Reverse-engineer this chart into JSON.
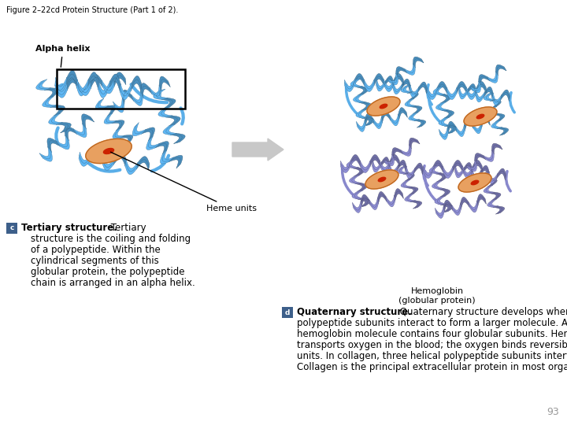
{
  "title": "Figure 2–22cd Protein Structure (Part 1 of 2).",
  "title_fontsize": 7,
  "title_color": "#000000",
  "background_color": "#ffffff",
  "page_number": "93",
  "alpha_helix_label": "Alpha helix",
  "heme_units_label": "Heme units",
  "hemoglobin_label": "Hemoglobin\n(globular protein)",
  "c_box_color": "#3d5f8a",
  "d_box_color": "#3d5f8a",
  "protein1_color": "#5aaee8",
  "protein2_color_blue": "#5aaee8",
  "protein2_color_purple": "#8888cc",
  "heme_outer_color": "#e8a060",
  "heme_inner_color": "#cc2200",
  "arrow_color": "#c8c8c8",
  "text_fontsize": 8.5,
  "label_fontsize": 8.0
}
